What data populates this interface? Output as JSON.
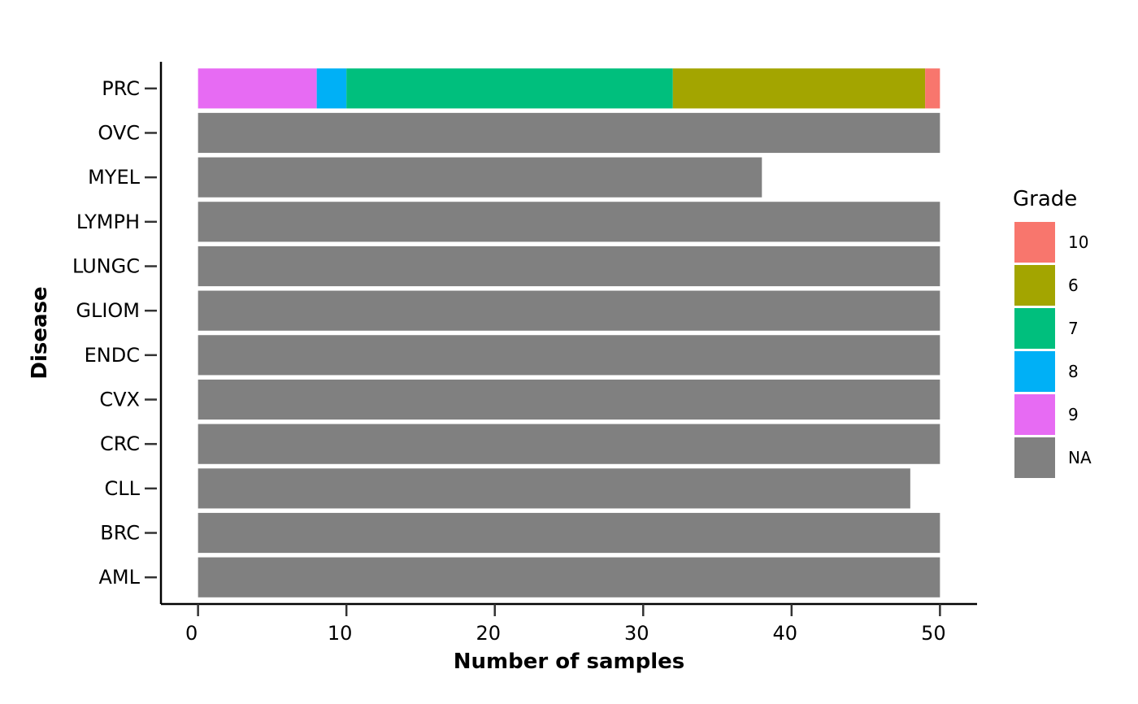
{
  "chart_data": {
    "type": "bar",
    "orientation": "horizontal",
    "stacked": true,
    "xlabel": "Number of samples",
    "ylabel": "Disease",
    "xlim": [
      -2.5,
      52.5
    ],
    "x_ticks": [
      0,
      10,
      20,
      30,
      40,
      50
    ],
    "grid": false,
    "categories": [
      "AML",
      "BRC",
      "CLL",
      "CRC",
      "CVX",
      "ENDC",
      "GLIOM",
      "LUNGC",
      "LYMPH",
      "MYEL",
      "OVC",
      "PRC"
    ],
    "series": [
      {
        "name": "9",
        "color": "#E76BF3",
        "values": [
          0,
          0,
          0,
          0,
          0,
          0,
          0,
          0,
          0,
          0,
          0,
          8
        ]
      },
      {
        "name": "8",
        "color": "#00B0F6",
        "values": [
          0,
          0,
          0,
          0,
          0,
          0,
          0,
          0,
          0,
          0,
          0,
          2
        ]
      },
      {
        "name": "7",
        "color": "#00BF7D",
        "values": [
          0,
          0,
          0,
          0,
          0,
          0,
          0,
          0,
          0,
          0,
          0,
          22
        ]
      },
      {
        "name": "6",
        "color": "#A3A500",
        "values": [
          0,
          0,
          0,
          0,
          0,
          0,
          0,
          0,
          0,
          0,
          0,
          17
        ]
      },
      {
        "name": "10",
        "color": "#F8766D",
        "values": [
          0,
          0,
          0,
          0,
          0,
          0,
          0,
          0,
          0,
          0,
          0,
          1
        ]
      },
      {
        "name": "NA",
        "color": "#808080",
        "values": [
          50,
          50,
          48,
          50,
          50,
          50,
          50,
          50,
          50,
          38,
          50,
          0
        ]
      }
    ],
    "legend": {
      "title": "Grade",
      "position": "right",
      "items": [
        {
          "label": "10",
          "color": "#F8766D"
        },
        {
          "label": "6",
          "color": "#A3A500"
        },
        {
          "label": "7",
          "color": "#00BF7D"
        },
        {
          "label": "8",
          "color": "#00B0F6"
        },
        {
          "label": "9",
          "color": "#E76BF3"
        },
        {
          "label": "NA",
          "color": "#808080"
        }
      ]
    }
  }
}
